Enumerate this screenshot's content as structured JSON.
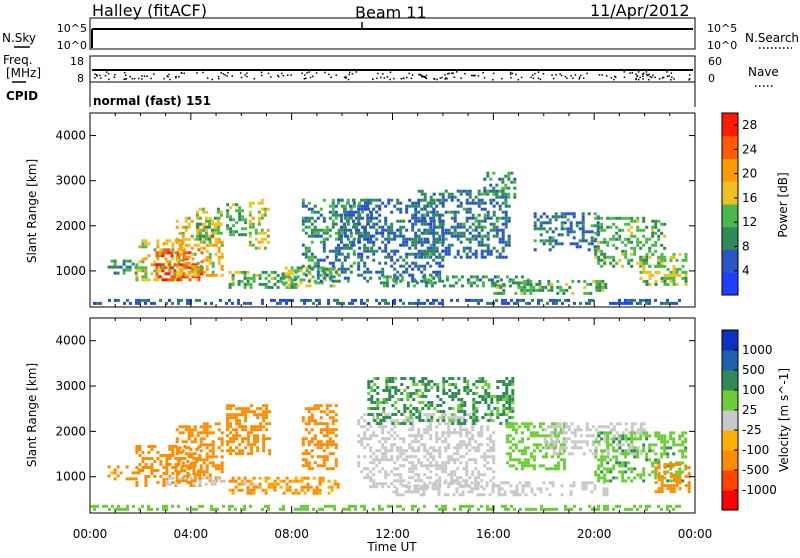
{
  "header": {
    "station": "Halley (fitACF)",
    "beam": "Beam 11",
    "date": "11/Apr/2012"
  },
  "strip_panels": {
    "nsky": {
      "left_label": "N.Sky",
      "left_ticks": [
        "10^5",
        "10^0"
      ],
      "right_label": "N.Search",
      "right_ticks": [
        "10^5",
        "10^0"
      ]
    },
    "freq": {
      "left_label_line1": "Freq.",
      "left_label_line2": "[MHz]",
      "left_ticks": [
        "18",
        "8"
      ],
      "right_label": "Nave",
      "right_ticks": [
        "60",
        "0"
      ]
    },
    "cpid": {
      "label": "CPID",
      "text": "normal (fast) 151"
    }
  },
  "colors": {
    "power_scale": [
      "#1f3fff",
      "#2a55c8",
      "#2e8b57",
      "#4cb84c",
      "#f0c020",
      "#ff9a00",
      "#ff5a00",
      "#ff1a00"
    ],
    "velocity_scale": [
      "#ff0000",
      "#ff4500",
      "#ff8c00",
      "#ffb000",
      "#c8c8c8",
      "#6acd35",
      "#2e8b57",
      "#2060b0",
      "#1030c0"
    ]
  },
  "chart_data": [
    {
      "type": "heatmap",
      "title": "",
      "ylabel": "Slant Range [km]",
      "xlabel": "",
      "x_ticks": [
        "00:00",
        "04:00",
        "08:00",
        "12:00",
        "16:00",
        "20:00",
        "00:00"
      ],
      "x_range_hours": [
        0,
        24
      ],
      "y_ticks": [
        1000,
        2000,
        3000,
        4000
      ],
      "ylim": [
        200,
        4500
      ],
      "colorbar": {
        "label": "Power [dB]",
        "ticks": [
          4,
          8,
          12,
          16,
          20,
          24,
          28
        ],
        "range": [
          0,
          30
        ]
      },
      "regions": [
        {
          "x": [
            0.7,
            1.8
          ],
          "y": [
            950,
            1250
          ],
          "z": 10
        },
        {
          "x": [
            1.8,
            3.6
          ],
          "y": [
            800,
            1700
          ],
          "z": 16
        },
        {
          "x": [
            2.6,
            4.4
          ],
          "y": [
            800,
            1500
          ],
          "z": 26
        },
        {
          "x": [
            3.4,
            5.2
          ],
          "y": [
            900,
            2200
          ],
          "z": 18
        },
        {
          "x": [
            4.2,
            5.2
          ],
          "y": [
            1700,
            2400
          ],
          "z": 14
        },
        {
          "x": [
            5.4,
            6.2
          ],
          "y": [
            1800,
            2500
          ],
          "z": 12
        },
        {
          "x": [
            6.3,
            7.1
          ],
          "y": [
            1500,
            2600
          ],
          "z": 16
        },
        {
          "x": [
            5.5,
            8.2
          ],
          "y": [
            650,
            1000
          ],
          "z": 12
        },
        {
          "x": [
            7.6,
            9.8
          ],
          "y": [
            700,
            1100
          ],
          "z": 14
        },
        {
          "x": [
            8.4,
            10.5
          ],
          "y": [
            800,
            2600
          ],
          "z": 9
        },
        {
          "x": [
            9.8,
            11.2
          ],
          "y": [
            1500,
            2600
          ],
          "z": 8
        },
        {
          "x": [
            10.6,
            14.0
          ],
          "y": [
            800,
            2600
          ],
          "z": 7
        },
        {
          "x": [
            13.0,
            16.6
          ],
          "y": [
            1300,
            2800
          ],
          "z": 8
        },
        {
          "x": [
            15.6,
            16.8
          ],
          "y": [
            2600,
            3200
          ],
          "z": 10
        },
        {
          "x": [
            11.5,
            17.5
          ],
          "y": [
            650,
            900
          ],
          "z": 11
        },
        {
          "x": [
            16.0,
            20.5
          ],
          "y": [
            500,
            800
          ],
          "z": 12
        },
        {
          "x": [
            17.6,
            20.2
          ],
          "y": [
            1500,
            2300
          ],
          "z": 8
        },
        {
          "x": [
            20.0,
            22.8
          ],
          "y": [
            1100,
            2200
          ],
          "z": 12
        },
        {
          "x": [
            21.8,
            23.6
          ],
          "y": [
            700,
            1400
          ],
          "z": 14
        },
        {
          "x": [
            0.0,
            23.4
          ],
          "y": [
            300,
            380
          ],
          "z": 6
        }
      ]
    },
    {
      "type": "heatmap",
      "title": "",
      "ylabel": "Slant Range [km]",
      "xlabel": "Time UT",
      "x_ticks": [
        "00:00",
        "04:00",
        "08:00",
        "12:00",
        "16:00",
        "20:00",
        "00:00"
      ],
      "x_range_hours": [
        0,
        24
      ],
      "y_ticks": [
        1000,
        2000,
        3000,
        4000
      ],
      "ylim": [
        200,
        4500
      ],
      "colorbar": {
        "label": "Velocity [m s^-1]",
        "ticks": [
          1000,
          500,
          100,
          25,
          -25,
          -100,
          -500,
          -1000
        ]
      },
      "regions": [
        {
          "x": [
            0.7,
            2.0
          ],
          "y": [
            950,
            1250
          ],
          "v": -150
        },
        {
          "x": [
            1.8,
            4.4
          ],
          "y": [
            800,
            1700
          ],
          "v": -300
        },
        {
          "x": [
            3.4,
            5.2
          ],
          "y": [
            900,
            2200
          ],
          "v": -250
        },
        {
          "x": [
            5.4,
            7.1
          ],
          "y": [
            1500,
            2600
          ],
          "v": -200
        },
        {
          "x": [
            3.0,
            6.5
          ],
          "y": [
            850,
            1000
          ],
          "v": 0
        },
        {
          "x": [
            5.5,
            9.8
          ],
          "y": [
            650,
            1000
          ],
          "v": -120
        },
        {
          "x": [
            8.4,
            9.8
          ],
          "y": [
            1200,
            2600
          ],
          "v": -300
        },
        {
          "x": [
            10.6,
            16.0
          ],
          "y": [
            800,
            2400
          ],
          "v": 0
        },
        {
          "x": [
            11.0,
            16.8
          ],
          "y": [
            2200,
            3200
          ],
          "v": 120
        },
        {
          "x": [
            12.0,
            20.5
          ],
          "y": [
            600,
            900
          ],
          "v": 0
        },
        {
          "x": [
            16.5,
            18.8
          ],
          "y": [
            1200,
            2200
          ],
          "v": 60
        },
        {
          "x": [
            18.0,
            22.0
          ],
          "y": [
            1500,
            2200
          ],
          "v": 0
        },
        {
          "x": [
            20.0,
            23.6
          ],
          "y": [
            900,
            2000
          ],
          "v": 80
        },
        {
          "x": [
            22.4,
            23.8
          ],
          "y": [
            700,
            1300
          ],
          "v": -200
        },
        {
          "x": [
            0.0,
            23.4
          ],
          "y": [
            300,
            380
          ],
          "v": 60
        }
      ]
    }
  ]
}
